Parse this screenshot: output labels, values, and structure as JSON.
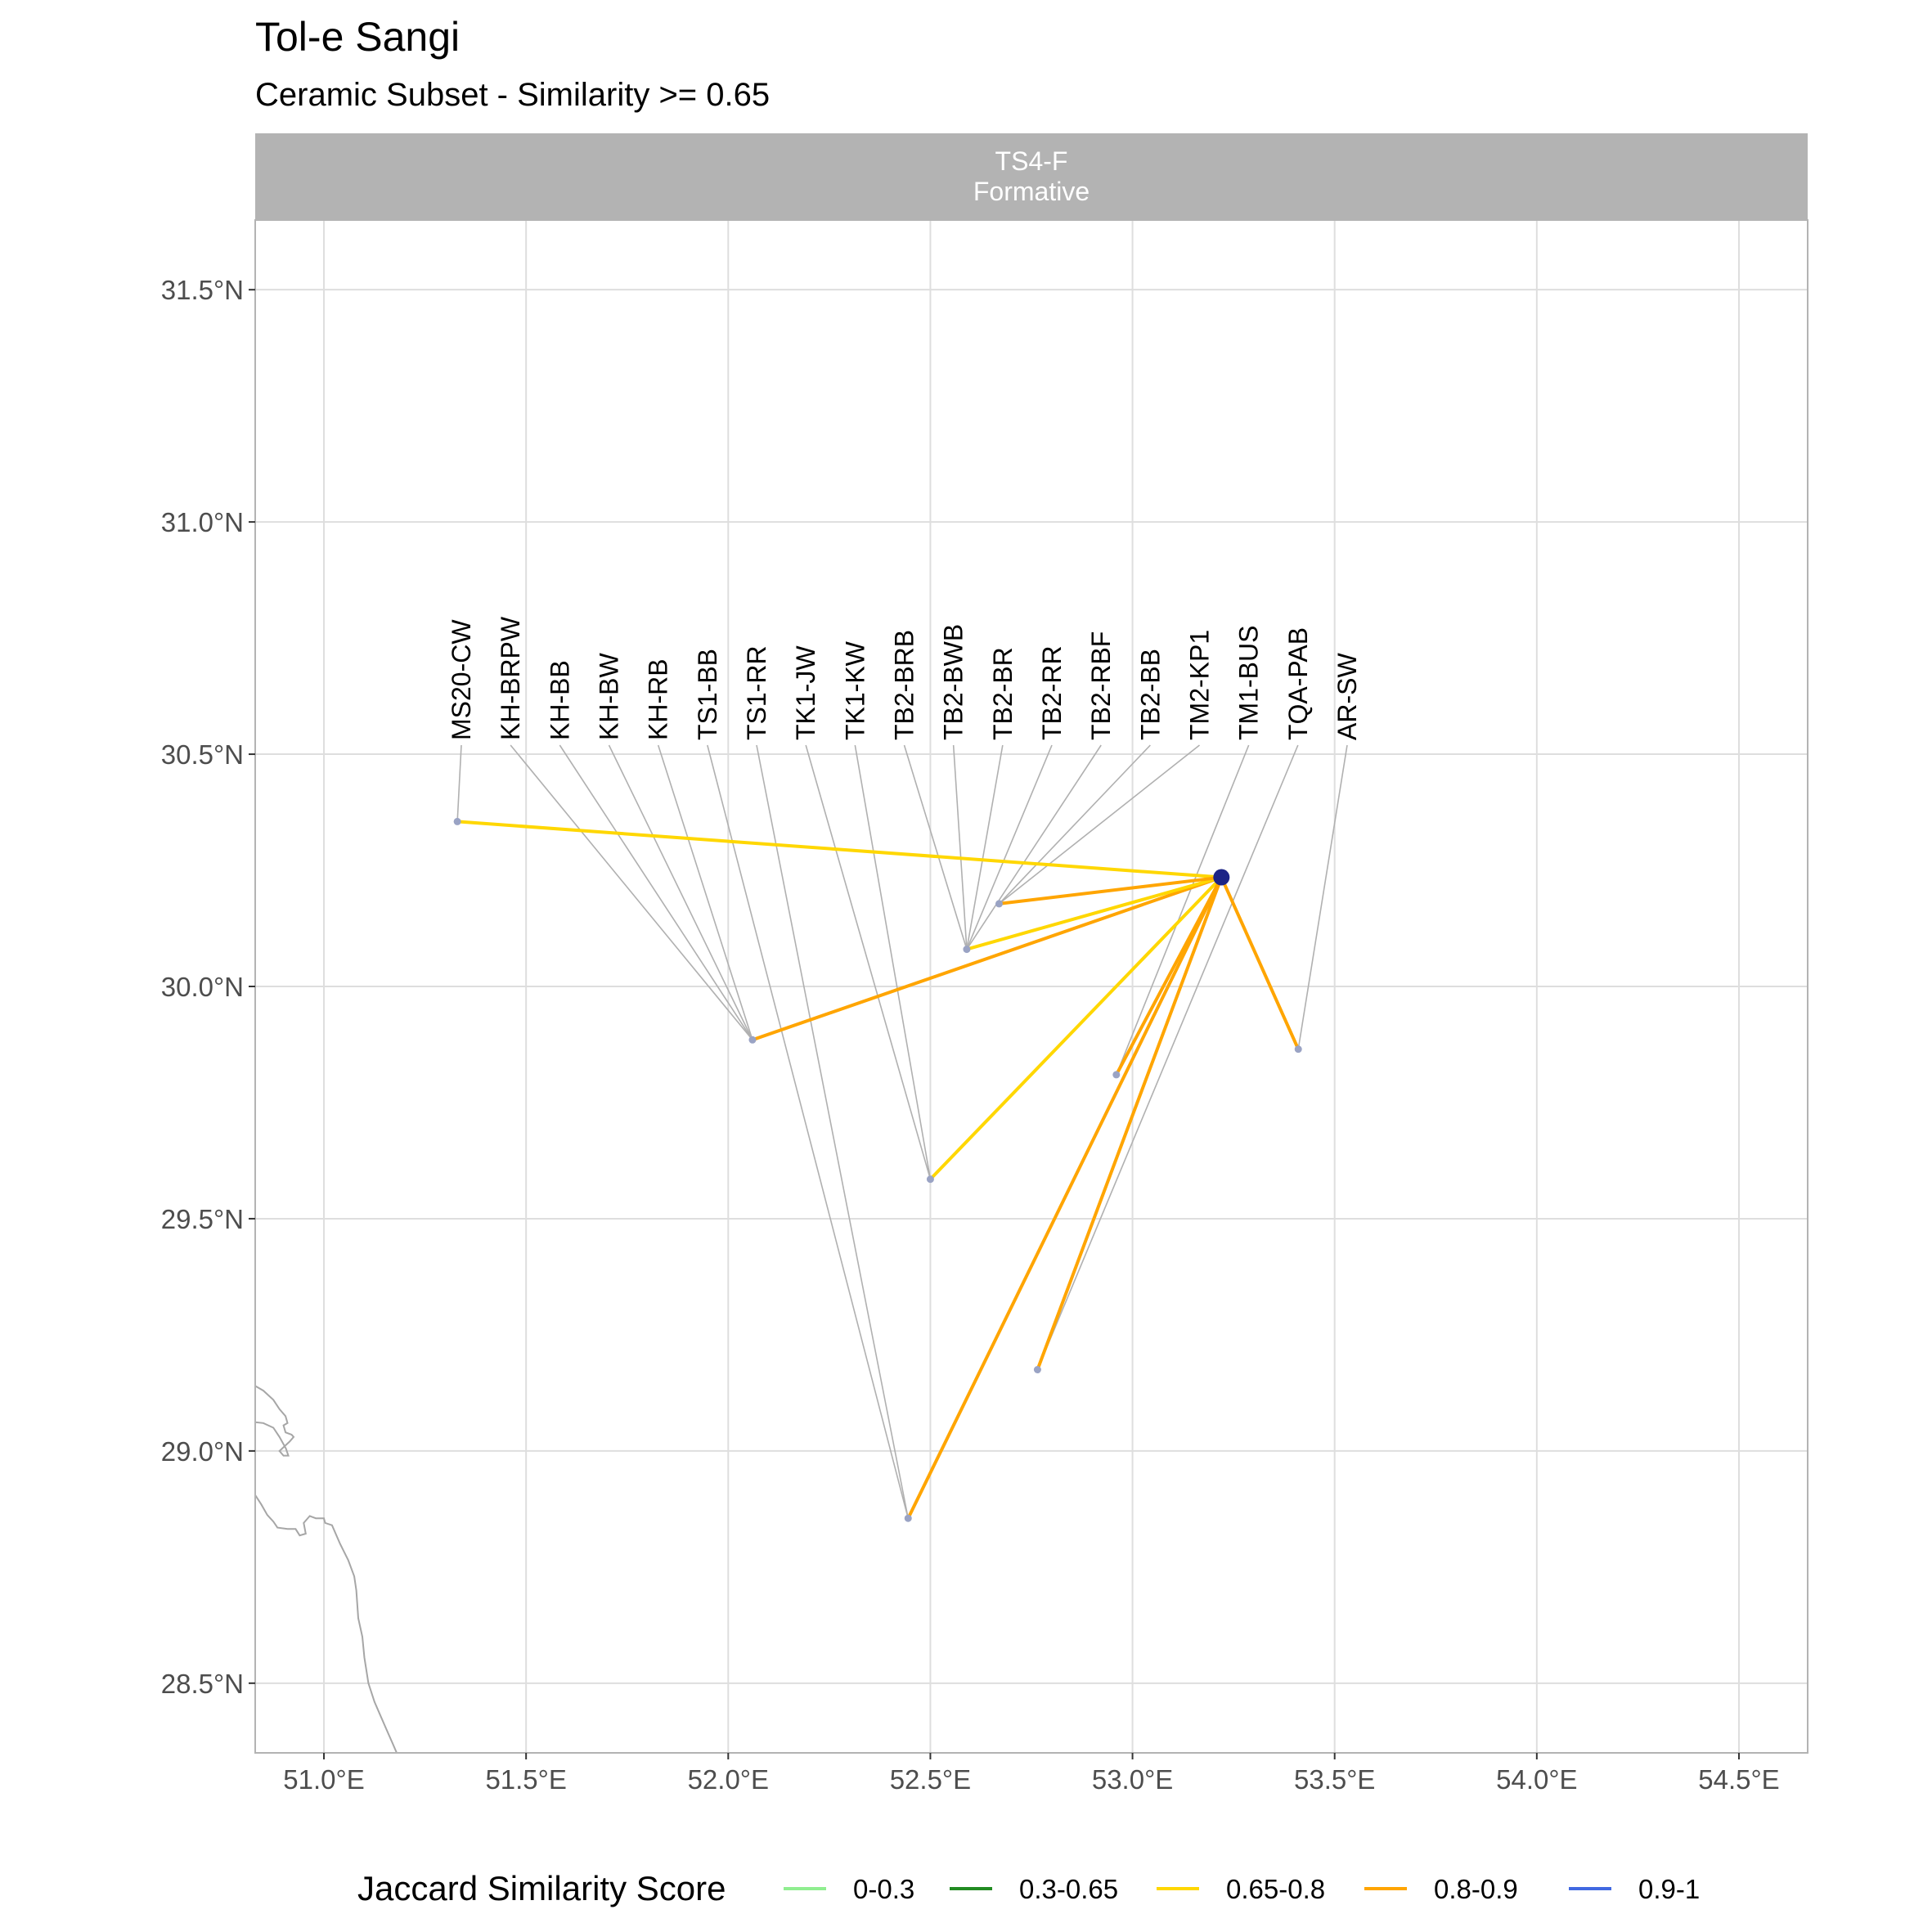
{
  "title": "Tol-e Sangi",
  "subtitle": "Ceramic Subset - Similarity >= 0.65",
  "panel": {
    "line1": "TS4-F",
    "line2": "Formative"
  },
  "colors": {
    "strip": "#b3b3b3",
    "grid": "#dedede",
    "border": "#b3b3b3",
    "coast": "#a6a6a6",
    "leader": "#b0b0b0",
    "site_point": "#9aa3c4",
    "focal_point": "#1c2486"
  },
  "chart_data": {
    "type": "map",
    "x_ticks": [
      {
        "value": 51.0,
        "label": "51.0°E"
      },
      {
        "value": 51.5,
        "label": "51.5°E"
      },
      {
        "value": 52.0,
        "label": "52.0°E"
      },
      {
        "value": 52.5,
        "label": "52.5°E"
      },
      {
        "value": 53.0,
        "label": "53.0°E"
      },
      {
        "value": 53.5,
        "label": "53.5°E"
      },
      {
        "value": 54.0,
        "label": "54.0°E"
      },
      {
        "value": 54.5,
        "label": "54.5°E"
      }
    ],
    "y_ticks": [
      {
        "value": 28.5,
        "label": "28.5°N"
      },
      {
        "value": 29.0,
        "label": "29.0°N"
      },
      {
        "value": 29.5,
        "label": "29.5°N"
      },
      {
        "value": 30.0,
        "label": "30.0°N"
      },
      {
        "value": 30.5,
        "label": "30.5°N"
      },
      {
        "value": 31.0,
        "label": "31.0°N"
      },
      {
        "value": 31.5,
        "label": "31.5°N"
      }
    ],
    "xlim": [
      50.83,
      54.67
    ],
    "ylim": [
      28.35,
      31.65
    ],
    "focal_site": {
      "lon": 53.22,
      "lat": 30.235
    },
    "connections": [
      {
        "lon": 51.33,
        "lat": 30.355,
        "band": "0.65-0.8"
      },
      {
        "lon": 52.06,
        "lat": 29.885,
        "band": "0.8-0.9"
      },
      {
        "lon": 52.59,
        "lat": 30.08,
        "band": "0.65-0.8"
      },
      {
        "lon": 52.67,
        "lat": 30.178,
        "band": "0.8-0.9"
      },
      {
        "lon": 52.5,
        "lat": 29.585,
        "band": "0.65-0.8"
      },
      {
        "lon": 52.96,
        "lat": 29.81,
        "band": "0.8-0.9"
      },
      {
        "lon": 52.445,
        "lat": 28.855,
        "band": "0.8-0.9"
      },
      {
        "lon": 52.765,
        "lat": 29.175,
        "band": "0.8-0.9"
      },
      {
        "lon": 53.41,
        "lat": 29.865,
        "band": "0.8-0.9"
      }
    ],
    "site_labels": [
      {
        "label": "MS20-CW",
        "lon": 51.33,
        "lat": 30.355
      },
      {
        "label": "KH-BRPW",
        "lon": 52.06,
        "lat": 29.885
      },
      {
        "label": "KH-BB",
        "lon": 52.06,
        "lat": 29.885
      },
      {
        "label": "KH-BW",
        "lon": 52.06,
        "lat": 29.885
      },
      {
        "label": "KH-RB",
        "lon": 52.06,
        "lat": 29.885
      },
      {
        "label": "TS1-BB",
        "lon": 52.445,
        "lat": 28.855
      },
      {
        "label": "TS1-RR",
        "lon": 52.445,
        "lat": 28.855
      },
      {
        "label": "TK1-JW",
        "lon": 52.5,
        "lat": 29.585
      },
      {
        "label": "TK1-KW",
        "lon": 52.5,
        "lat": 29.585
      },
      {
        "label": "TB2-BRB",
        "lon": 52.59,
        "lat": 30.08
      },
      {
        "label": "TB2-BWB",
        "lon": 52.59,
        "lat": 30.08
      },
      {
        "label": "TB2-BR",
        "lon": 52.59,
        "lat": 30.08
      },
      {
        "label": "TB2-RR",
        "lon": 52.59,
        "lat": 30.08
      },
      {
        "label": "TB2-RBF",
        "lon": 52.59,
        "lat": 30.08
      },
      {
        "label": "TB2-BB",
        "lon": 52.67,
        "lat": 30.178
      },
      {
        "label": "TM2-KP1",
        "lon": 52.67,
        "lat": 30.178
      },
      {
        "label": "TM1-BUS",
        "lon": 52.96,
        "lat": 29.81
      },
      {
        "label": "TQA-PAB",
        "lon": 52.765,
        "lat": 29.175
      },
      {
        "label": "AR-SW",
        "lon": 53.41,
        "lat": 29.865
      }
    ],
    "coastline": [
      [
        [
          50.83,
          29.14
        ],
        [
          50.85,
          29.13
        ],
        [
          50.875,
          29.11
        ],
        [
          50.89,
          29.09
        ],
        [
          50.905,
          29.075
        ],
        [
          50.91,
          29.06
        ],
        [
          50.9,
          29.055
        ],
        [
          50.905,
          29.04
        ],
        [
          50.92,
          29.035
        ],
        [
          50.925,
          29.03
        ],
        [
          50.915,
          29.02
        ],
        [
          50.89,
          29.0
        ],
        [
          50.9,
          28.99
        ],
        [
          50.912,
          28.99
        ],
        [
          50.906,
          29.005
        ],
        [
          50.89,
          29.03
        ],
        [
          50.875,
          29.05
        ],
        [
          50.85,
          29.06
        ],
        [
          50.83,
          29.062
        ]
      ],
      [
        [
          50.83,
          28.905
        ],
        [
          50.845,
          28.885
        ],
        [
          50.86,
          28.862
        ],
        [
          50.875,
          28.848
        ],
        [
          50.885,
          28.835
        ],
        [
          50.91,
          28.832
        ],
        [
          50.93,
          28.832
        ],
        [
          50.94,
          28.818
        ],
        [
          50.955,
          28.822
        ],
        [
          50.95,
          28.845
        ],
        [
          50.965,
          28.86
        ],
        [
          50.98,
          28.855
        ],
        [
          51.0,
          28.855
        ],
        [
          51.003,
          28.845
        ],
        [
          51.02,
          28.84
        ],
        [
          51.04,
          28.8
        ],
        [
          51.06,
          28.765
        ],
        [
          51.075,
          28.73
        ],
        [
          51.08,
          28.7
        ],
        [
          51.085,
          28.64
        ],
        [
          51.09,
          28.62
        ],
        [
          51.095,
          28.6
        ],
        [
          51.1,
          28.555
        ],
        [
          51.11,
          28.5
        ],
        [
          51.125,
          28.46
        ],
        [
          51.14,
          28.43
        ],
        [
          51.155,
          28.4
        ],
        [
          51.17,
          28.37
        ],
        [
          51.18,
          28.35
        ]
      ]
    ],
    "legend": {
      "title": "Jaccard Similarity Score",
      "items": [
        {
          "label": "0-0.3",
          "color": "#90ee90"
        },
        {
          "label": "0.3-0.65",
          "color": "#228b22"
        },
        {
          "label": "0.65-0.8",
          "color": "#ffd700"
        },
        {
          "label": "0.8-0.9",
          "color": "#ffa500"
        },
        {
          "label": "0.9-1",
          "color": "#4169e1"
        }
      ]
    }
  }
}
